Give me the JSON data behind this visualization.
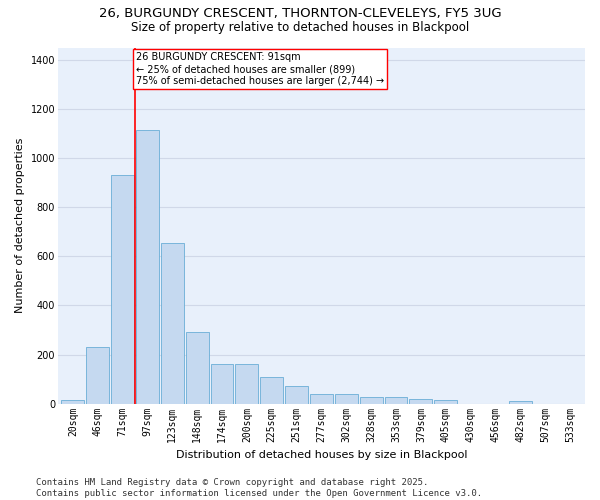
{
  "title_line1": "26, BURGUNDY CRESCENT, THORNTON-CLEVELEYS, FY5 3UG",
  "title_line2": "Size of property relative to detached houses in Blackpool",
  "xlabel": "Distribution of detached houses by size in Blackpool",
  "ylabel": "Number of detached properties",
  "bar_labels": [
    "20sqm",
    "46sqm",
    "71sqm",
    "97sqm",
    "123sqm",
    "148sqm",
    "174sqm",
    "200sqm",
    "225sqm",
    "251sqm",
    "277sqm",
    "302sqm",
    "328sqm",
    "353sqm",
    "379sqm",
    "405sqm",
    "430sqm",
    "456sqm",
    "482sqm",
    "507sqm",
    "533sqm"
  ],
  "bar_values": [
    15,
    230,
    930,
    1115,
    655,
    290,
    160,
    160,
    110,
    70,
    40,
    40,
    25,
    25,
    20,
    15,
    0,
    0,
    10,
    0,
    0
  ],
  "bar_color": "#c5d9f0",
  "bar_edge_color": "#6aaed6",
  "vline_x_idx": 3,
  "vline_color": "red",
  "annotation_text": "26 BURGUNDY CRESCENT: 91sqm\n← 25% of detached houses are smaller (899)\n75% of semi-detached houses are larger (2,744) →",
  "annotation_box_color": "white",
  "annotation_box_edge_color": "red",
  "ylim": [
    0,
    1450
  ],
  "yticks": [
    0,
    200,
    400,
    600,
    800,
    1000,
    1200,
    1400
  ],
  "bg_color": "#e8f0fb",
  "grid_color": "#d0d8e8",
  "footer_text": "Contains HM Land Registry data © Crown copyright and database right 2025.\nContains public sector information licensed under the Open Government Licence v3.0.",
  "title_fontsize": 9.5,
  "subtitle_fontsize": 8.5,
  "axis_label_fontsize": 8,
  "tick_fontsize": 7,
  "annotation_fontsize": 7,
  "footer_fontsize": 6.5
}
